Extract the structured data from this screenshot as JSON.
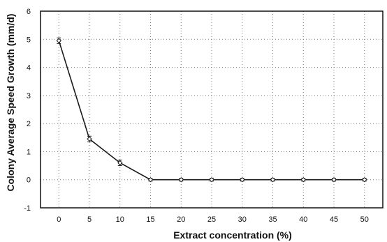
{
  "chart_data": {
    "type": "line",
    "xlabel": "Extract concentration (%)",
    "ylabel": "Colony Average Speed Growth (mm/d)",
    "xlim": [
      -3,
      53
    ],
    "ylim": [
      -1,
      6
    ],
    "x_ticks": [
      "0",
      "5",
      "10",
      "15",
      "20",
      "25",
      "30",
      "35",
      "40",
      "45",
      "50"
    ],
    "y_ticks": [
      "-1",
      "0",
      "1",
      "2",
      "3",
      "4",
      "5",
      "6"
    ],
    "grid": true,
    "legend": "none",
    "series": [
      {
        "x": [
          0,
          5,
          10,
          15,
          20,
          25,
          30,
          35,
          40,
          45,
          50
        ],
        "y": [
          4.95,
          1.45,
          0.6,
          0.0,
          0.0,
          0.0,
          0.0,
          0.0,
          0.0,
          0.0,
          0.0
        ],
        "error": [
          0.1,
          0.1,
          0.1,
          0.05,
          0.05,
          0.05,
          0.05,
          0.05,
          0.05,
          0.05,
          0.05
        ],
        "color": "#1a1a1a",
        "marker": "diamond"
      }
    ]
  }
}
